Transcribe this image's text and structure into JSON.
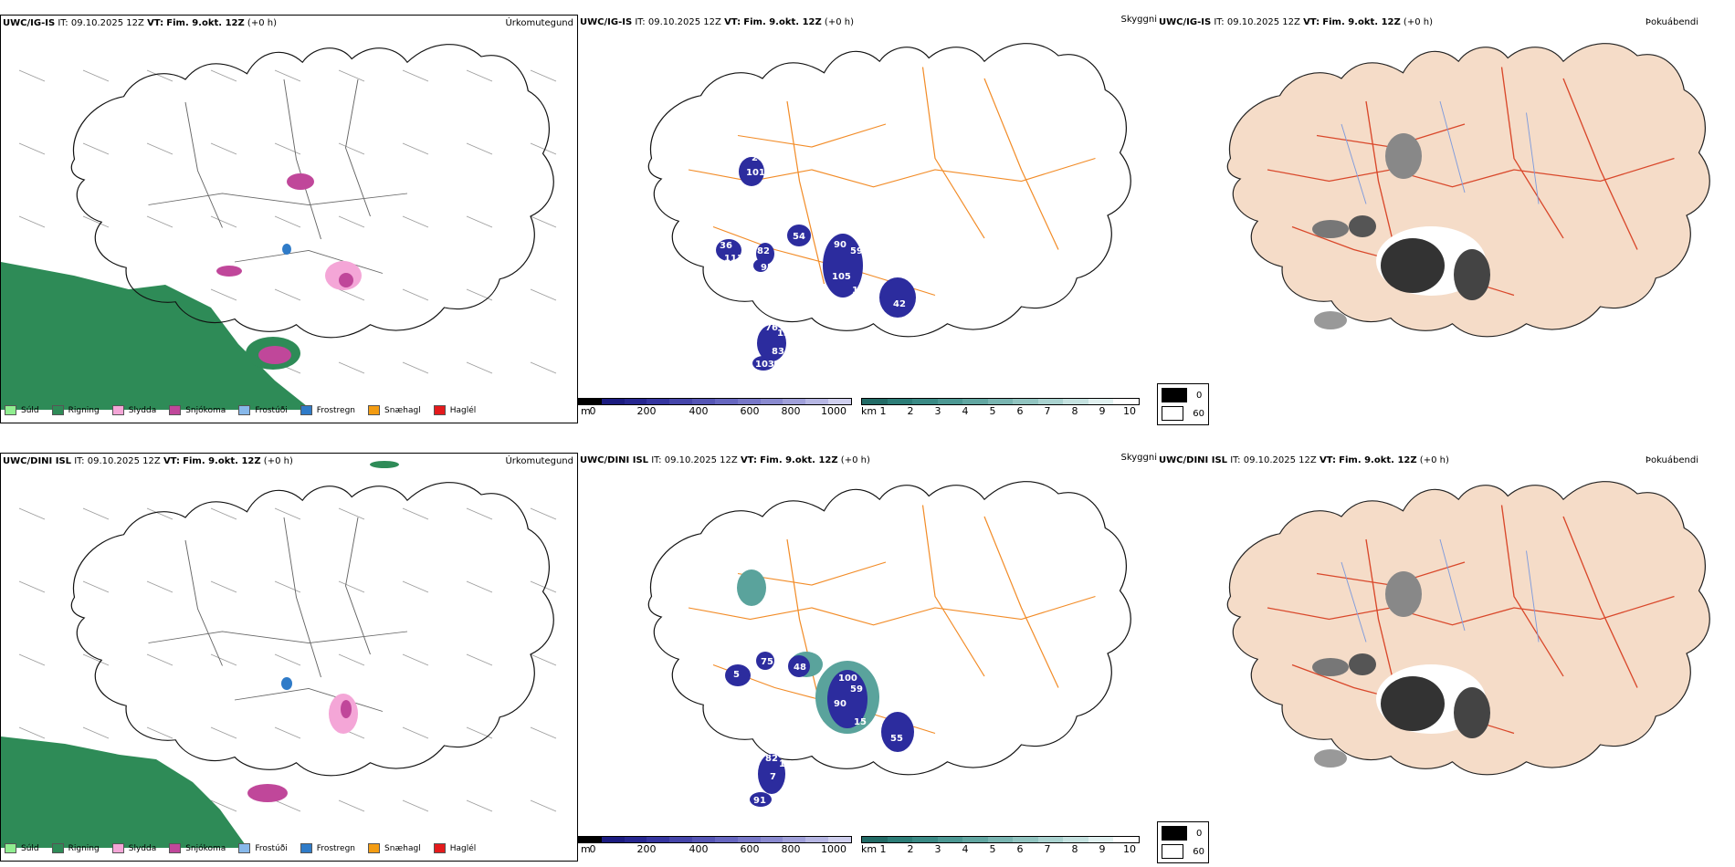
{
  "top": {
    "left": {
      "title_model": "UWC/IG-IS",
      "title_it": "IT: 09.10.2025 12Z",
      "title_vt_label": "VT:",
      "title_vt_value": "Fim. 9.okt. 12Z",
      "title_offset": "(+0 h)",
      "right_label": "Úrkomutegund"
    },
    "mid": {
      "title_model": "UWC/IG-IS",
      "title_it": "IT: 09.10.2025 12Z",
      "title_vt_label": "VT:",
      "title_vt_value": "Fim. 9.okt. 12Z",
      "title_offset": "(+0 h)",
      "right_label": "Skyggni",
      "labels": [
        "101",
        "54",
        "90",
        "59",
        "105",
        "101",
        "42",
        "76",
        "13",
        "83",
        "103",
        "111",
        "82",
        "93",
        "36",
        "20"
      ]
    },
    "right": {
      "title_model": "UWC/IG-IS",
      "title_it": "IT: 09.10.2025 12Z",
      "title_vt_label": "VT:",
      "title_vt_value": "Fim. 9.okt. 12Z",
      "title_offset": "(+0 h)",
      "right_label": "Þokuábendi"
    }
  },
  "bottom": {
    "left": {
      "title_model": "UWC/DINI ISL",
      "title_it": "IT: 09.10.2025 12Z",
      "title_vt_label": "VT:",
      "title_vt_value": "Fim. 9.okt. 12Z",
      "title_offset": "(+0 h)",
      "right_label": "Úrkomutegund"
    },
    "mid": {
      "title_model": "UWC/DINI ISL",
      "title_it": "IT: 09.10.2025 12Z",
      "title_vt_label": "VT:",
      "title_vt_value": "Fim. 9.okt. 12Z",
      "title_offset": "(+0 h)",
      "right_label": "Skyggni",
      "labels": [
        "48",
        "75",
        "59",
        "90",
        "100",
        "15",
        "55",
        "82",
        "17",
        "7",
        "70",
        "91",
        "5"
      ]
    },
    "right": {
      "title_model": "UWC/DINI ISL",
      "title_it": "IT: 09.10.2025 12Z",
      "title_vt_label": "VT:",
      "title_vt_value": "Fim. 9.okt. 12Z",
      "title_offset": "(+0 h)",
      "right_label": "Þokuábendi"
    }
  },
  "precip_legend": [
    {
      "label": "Súld",
      "color": "#90ee90"
    },
    {
      "label": "Rigning",
      "color": "#2e8b57"
    },
    {
      "label": "Slydda",
      "color": "#f4a6d7"
    },
    {
      "label": "Snjókoma",
      "color": "#c0479a"
    },
    {
      "label": "Frostúði",
      "color": "#87b8ea"
    },
    {
      "label": "Frostregn",
      "color": "#2f7bc8"
    },
    {
      "label": "Snæhagl",
      "color": "#f39c12"
    },
    {
      "label": "Haglél",
      "color": "#e41a1c"
    }
  ],
  "height_scale": {
    "unit": "m",
    "ticks": [
      "0",
      "200",
      "400",
      "600",
      "800",
      "1000"
    ]
  },
  "vis_scale": {
    "unit": "km",
    "ticks": [
      "1",
      "2",
      "3",
      "4",
      "5",
      "6",
      "7",
      "8",
      "9",
      "10"
    ]
  },
  "fog_legend": {
    "black_label": "0",
    "white_label": "60"
  },
  "colors": {
    "rain": "#2e8b57",
    "snow": "#c0479a",
    "sleet": "#f4a6d7",
    "vis": "#2c2c9e",
    "road": "#f28c28",
    "land": "#f5dcc8",
    "red": "#d9482b"
  }
}
